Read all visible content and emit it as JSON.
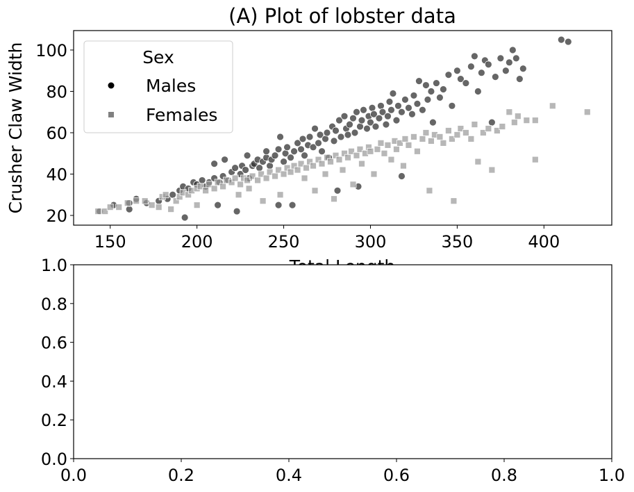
{
  "chart_data": [
    {
      "type": "scatter",
      "title": "(A) Plot of lobster data",
      "xlabel": "Total Length",
      "ylabel": "Crusher Claw Width",
      "xlim": [
        128.9,
        439.1
      ],
      "ylim": [
        15.3,
        109.4
      ],
      "xticks": [
        150,
        200,
        250,
        300,
        350,
        400
      ],
      "yticks": [
        20,
        40,
        60,
        80,
        100
      ],
      "grid": false,
      "legend": {
        "title": "Sex",
        "placement": "top-left"
      },
      "series": [
        {
          "name": "Males",
          "marker": "circle",
          "color": "#333333",
          "points": [
            [
              144,
              22
            ],
            [
              152,
              25
            ],
            [
              161,
              23
            ],
            [
              161,
              26
            ],
            [
              165,
              28
            ],
            [
              171,
              26
            ],
            [
              178,
              27
            ],
            [
              183,
              28
            ],
            [
              186,
              30
            ],
            [
              190,
              32
            ],
            [
              192,
              34
            ],
            [
              193,
              19
            ],
            [
              195,
              33
            ],
            [
              198,
              36
            ],
            [
              200,
              35
            ],
            [
              203,
              37
            ],
            [
              205,
              34
            ],
            [
              207,
              36
            ],
            [
              210,
              38
            ],
            [
              210,
              45
            ],
            [
              212,
              25
            ],
            [
              213,
              36
            ],
            [
              215,
              39
            ],
            [
              216,
              47
            ],
            [
              218,
              37
            ],
            [
              220,
              41
            ],
            [
              222,
              43
            ],
            [
              223,
              22
            ],
            [
              225,
              40
            ],
            [
              226,
              44
            ],
            [
              228,
              42
            ],
            [
              229,
              49
            ],
            [
              230,
              38
            ],
            [
              232,
              44
            ],
            [
              233,
              45
            ],
            [
              235,
              47
            ],
            [
              236,
              43
            ],
            [
              238,
              46
            ],
            [
              240,
              48
            ],
            [
              240,
              51
            ],
            [
              242,
              44
            ],
            [
              243,
              47
            ],
            [
              245,
              49
            ],
            [
              247,
              52
            ],
            [
              247,
              25
            ],
            [
              248,
              58
            ],
            [
              250,
              46
            ],
            [
              251,
              50
            ],
            [
              252,
              53
            ],
            [
              254,
              48
            ],
            [
              255,
              25
            ],
            [
              256,
              51
            ],
            [
              258,
              55
            ],
            [
              260,
              52
            ],
            [
              261,
              57
            ],
            [
              262,
              49
            ],
            [
              264,
              54
            ],
            [
              265,
              58
            ],
            [
              267,
              53
            ],
            [
              268,
              62
            ],
            [
              270,
              55
            ],
            [
              271,
              59
            ],
            [
              272,
              51
            ],
            [
              274,
              57
            ],
            [
              275,
              60
            ],
            [
              276,
              48
            ],
            [
              278,
              63
            ],
            [
              279,
              56
            ],
            [
              280,
              61
            ],
            [
              281,
              32
            ],
            [
              282,
              66
            ],
            [
              283,
              58
            ],
            [
              285,
              68
            ],
            [
              286,
              62
            ],
            [
              287,
              59
            ],
            [
              288,
              64
            ],
            [
              290,
              67
            ],
            [
              291,
              60
            ],
            [
              292,
              70
            ],
            [
              293,
              34
            ],
            [
              294,
              63
            ],
            [
              295,
              66
            ],
            [
              296,
              71
            ],
            [
              298,
              62
            ],
            [
              299,
              68
            ],
            [
              300,
              65
            ],
            [
              301,
              72
            ],
            [
              302,
              69
            ],
            [
              303,
              63
            ],
            [
              305,
              67
            ],
            [
              306,
              73
            ],
            [
              307,
              70
            ],
            [
              309,
              64
            ],
            [
              310,
              68
            ],
            [
              311,
              75
            ],
            [
              312,
              71
            ],
            [
              313,
              79
            ],
            [
              315,
              66
            ],
            [
              316,
              73
            ],
            [
              318,
              39
            ],
            [
              318,
              70
            ],
            [
              320,
              76
            ],
            [
              322,
              72
            ],
            [
              324,
              69
            ],
            [
              325,
              78
            ],
            [
              327,
              74
            ],
            [
              328,
              85
            ],
            [
              330,
              71
            ],
            [
              332,
              83
            ],
            [
              333,
              76
            ],
            [
              335,
              80
            ],
            [
              336,
              65
            ],
            [
              338,
              84
            ],
            [
              340,
              77
            ],
            [
              342,
              81
            ],
            [
              345,
              88
            ],
            [
              347,
              73
            ],
            [
              350,
              90
            ],
            [
              352,
              86
            ],
            [
              355,
              84
            ],
            [
              358,
              92
            ],
            [
              360,
              97
            ],
            [
              362,
              80
            ],
            [
              364,
              89
            ],
            [
              366,
              95
            ],
            [
              368,
              93
            ],
            [
              370,
              65
            ],
            [
              372,
              87
            ],
            [
              375,
              96
            ],
            [
              378,
              90
            ],
            [
              380,
              94
            ],
            [
              382,
              100
            ],
            [
              384,
              96
            ],
            [
              386,
              86
            ],
            [
              388,
              91
            ],
            [
              410,
              105
            ],
            [
              414,
              104
            ]
          ]
        },
        {
          "name": "Females",
          "marker": "square",
          "color": "#999999",
          "points": [
            [
              143,
              22
            ],
            [
              147,
              22
            ],
            [
              150,
              24
            ],
            [
              155,
              24
            ],
            [
              160,
              26
            ],
            [
              165,
              27
            ],
            [
              170,
              27
            ],
            [
              174,
              25
            ],
            [
              178,
              24
            ],
            [
              180,
              29
            ],
            [
              182,
              30
            ],
            [
              185,
              23
            ],
            [
              188,
              27
            ],
            [
              190,
              29
            ],
            [
              192,
              31
            ],
            [
              195,
              30
            ],
            [
              197,
              32
            ],
            [
              200,
              33
            ],
            [
              200,
              25
            ],
            [
              202,
              34
            ],
            [
              205,
              32
            ],
            [
              207,
              35
            ],
            [
              210,
              33
            ],
            [
              212,
              36
            ],
            [
              215,
              34
            ],
            [
              217,
              37
            ],
            [
              220,
              36
            ],
            [
              222,
              38
            ],
            [
              224,
              30
            ],
            [
              225,
              35
            ],
            [
              227,
              38
            ],
            [
              229,
              37
            ],
            [
              230,
              33
            ],
            [
              232,
              39
            ],
            [
              235,
              37
            ],
            [
              237,
              40
            ],
            [
              238,
              27
            ],
            [
              240,
              38
            ],
            [
              242,
              41
            ],
            [
              245,
              39
            ],
            [
              247,
              42
            ],
            [
              248,
              30
            ],
            [
              250,
              40
            ],
            [
              252,
              43
            ],
            [
              254,
              41
            ],
            [
              256,
              44
            ],
            [
              258,
              42
            ],
            [
              260,
              45
            ],
            [
              262,
              38
            ],
            [
              263,
              43
            ],
            [
              265,
              46
            ],
            [
              267,
              44
            ],
            [
              268,
              32
            ],
            [
              270,
              47
            ],
            [
              272,
              45
            ],
            [
              274,
              40
            ],
            [
              275,
              48
            ],
            [
              277,
              46
            ],
            [
              279,
              28
            ],
            [
              280,
              49
            ],
            [
              282,
              47
            ],
            [
              284,
              42
            ],
            [
              285,
              50
            ],
            [
              287,
              48
            ],
            [
              289,
              51
            ],
            [
              290,
              35
            ],
            [
              292,
              49
            ],
            [
              294,
              52
            ],
            [
              295,
              45
            ],
            [
              297,
              50
            ],
            [
              299,
              53
            ],
            [
              300,
              51
            ],
            [
              302,
              40
            ],
            [
              304,
              52
            ],
            [
              306,
              55
            ],
            [
              308,
              50
            ],
            [
              310,
              54
            ],
            [
              312,
              47
            ],
            [
              314,
              56
            ],
            [
              315,
              52
            ],
            [
              317,
              55
            ],
            [
              319,
              44
            ],
            [
              320,
              57
            ],
            [
              322,
              54
            ],
            [
              325,
              58
            ],
            [
              327,
              51
            ],
            [
              330,
              57
            ],
            [
              332,
              60
            ],
            [
              334,
              32
            ],
            [
              335,
              56
            ],
            [
              337,
              59
            ],
            [
              340,
              58
            ],
            [
              342,
              55
            ],
            [
              345,
              61
            ],
            [
              347,
              57
            ],
            [
              348,
              27
            ],
            [
              350,
              59
            ],
            [
              352,
              62
            ],
            [
              355,
              60
            ],
            [
              358,
              57
            ],
            [
              360,
              64
            ],
            [
              362,
              46
            ],
            [
              365,
              60
            ],
            [
              368,
              62
            ],
            [
              370,
              42
            ],
            [
              373,
              61
            ],
            [
              376,
              63
            ],
            [
              380,
              70
            ],
            [
              383,
              65
            ],
            [
              385,
              68
            ],
            [
              390,
              66
            ],
            [
              395,
              47
            ],
            [
              395,
              66
            ],
            [
              405,
              73
            ],
            [
              425,
              70
            ]
          ]
        }
      ]
    },
    {
      "type": "scatter",
      "title": "",
      "xlim": [
        0,
        1
      ],
      "ylim": [
        0,
        1
      ],
      "xticks": [
        "0.0",
        "0.2",
        "0.4",
        "0.6",
        "0.8",
        "1.0"
      ],
      "yticks": [
        "0.0",
        "0.2",
        "0.4",
        "0.6",
        "0.8",
        "1.0"
      ],
      "series": []
    }
  ]
}
